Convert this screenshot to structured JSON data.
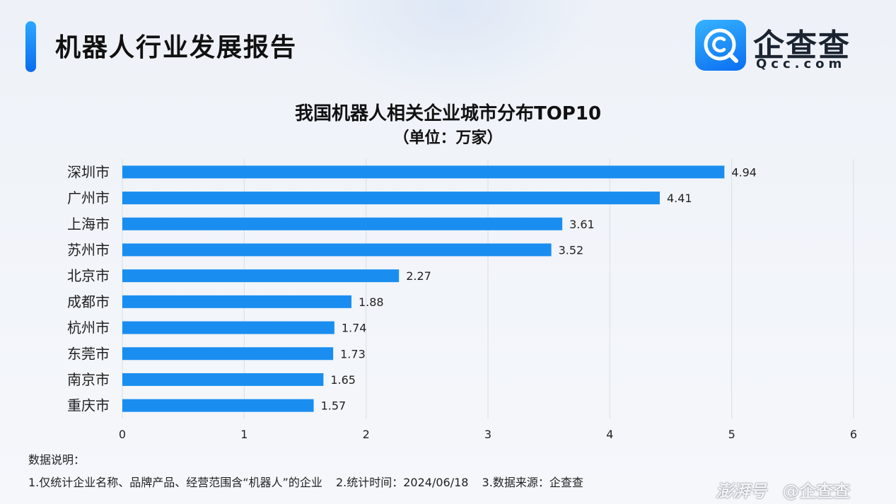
{
  "header": {
    "title": "机器人行业发展报告"
  },
  "logo": {
    "name": "企查查",
    "domain": "Qcc.com",
    "icon": "qcc-magnifier-logo-icon",
    "colors": {
      "gradient_start": "#36b3ff",
      "gradient_end": "#0a6ef2"
    }
  },
  "chart_data": {
    "type": "bar",
    "orientation": "horizontal",
    "title": "我国机器人相关企业城市分布TOP10",
    "subtitle": "（单位：万家）",
    "categories": [
      "深圳市",
      "广州市",
      "上海市",
      "苏州市",
      "北京市",
      "成都市",
      "杭州市",
      "东莞市",
      "南京市",
      "重庆市"
    ],
    "values": [
      4.94,
      4.41,
      3.61,
      3.52,
      2.27,
      1.88,
      1.74,
      1.73,
      1.65,
      1.57
    ],
    "value_labels": [
      "4.94",
      "4.41",
      "3.61",
      "3.52",
      "2.27",
      "1.88",
      "1.74",
      "1.73",
      "1.65",
      "1.57"
    ],
    "xlim": [
      0,
      6
    ],
    "xticks": [
      "0",
      "1",
      "2",
      "3",
      "4",
      "5",
      "6"
    ],
    "grid": "vertical",
    "legend": "none",
    "bar_color": "#1a8ef0"
  },
  "notes": {
    "heading": "数据说明：",
    "items": [
      "1.仅统计企业名称、品牌产品、经营范围含“机器人”的企业",
      "2.统计时间：2024/06/18",
      "3.数据来源：企查查"
    ]
  },
  "watermark": {
    "brand": "澎湃号",
    "account": "@企查查"
  }
}
